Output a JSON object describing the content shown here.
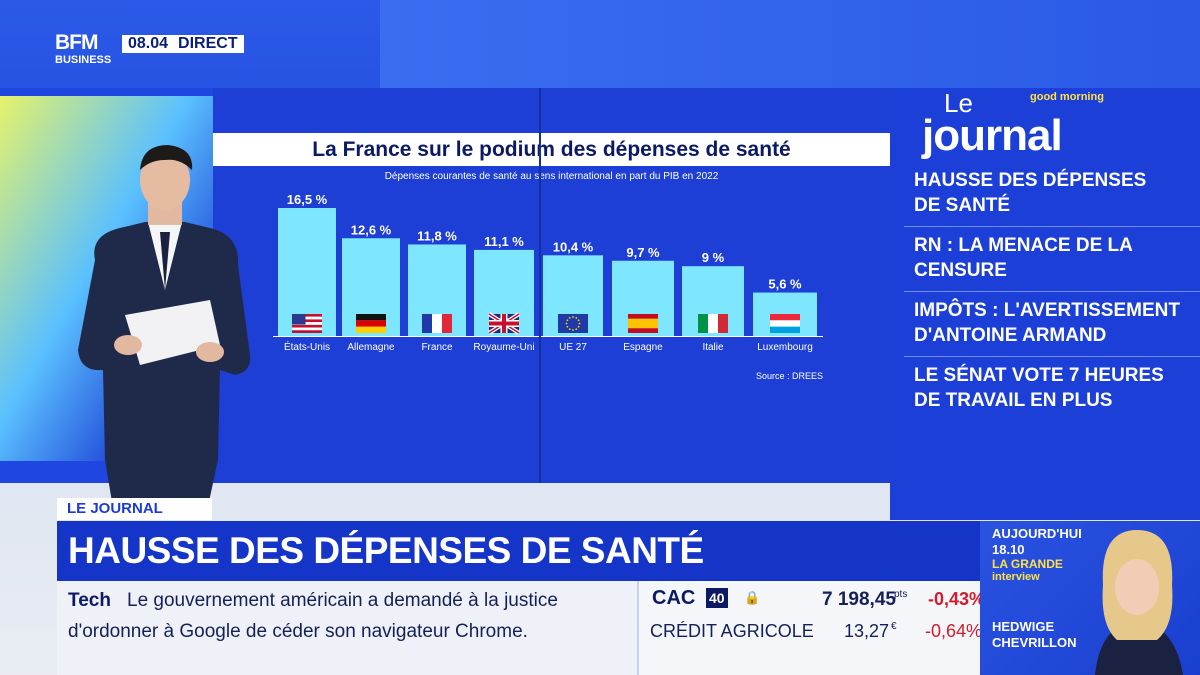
{
  "channel": {
    "logo_top": "BFM",
    "logo_bottom": "BUSINESS",
    "time": "08.04",
    "live": "DIRECT"
  },
  "chart_data": {
    "type": "bar",
    "title": "La France sur le podium des dépenses de santé",
    "subtitle": "Dépenses courantes de santé au sens international en part du PIB en 2022",
    "categories": [
      "États-Unis",
      "Allemagne",
      "France",
      "Royaume-Uni",
      "UE 27",
      "Espagne",
      "Italie",
      "Luxembourg"
    ],
    "values": [
      16.5,
      12.6,
      11.8,
      11.1,
      10.4,
      9.7,
      9,
      5.6
    ],
    "data_labels": [
      "16,5 %",
      "12,6 %",
      "11,8 %",
      "11,1 %",
      "10,4 %",
      "9,7 %",
      "9 %",
      "5,6 %"
    ],
    "flags": [
      "us-flag-icon",
      "germany-flag-icon",
      "france-flag-icon",
      "uk-flag-icon",
      "eu-flag-icon",
      "spain-flag-icon",
      "italy-flag-icon",
      "luxembourg-flag-icon"
    ],
    "source": "Source : DREES",
    "ylim": [
      0,
      17
    ],
    "bar_color": "#7fe6ff",
    "grid": false
  },
  "rail": {
    "logo_small": "Le",
    "logo_big": "journal",
    "tagline": "good morning",
    "headlines": [
      {
        "line1": "HAUSSE DES DÉPENSES",
        "line2": "DE SANTÉ"
      },
      {
        "line1": "RN : LA MENACE DE LA",
        "line2": "CENSURE"
      },
      {
        "line1": "IMPÔTS : L'AVERTISSEMENT",
        "line2": "D'ANTOINE ARMAND"
      },
      {
        "line1": "LE SÉNAT VOTE 7 HEURES",
        "line2": "DE TRAVAIL EN PLUS"
      }
    ]
  },
  "lower_third": {
    "tag": "LE JOURNAL",
    "headline": "HAUSSE DES DÉPENSES DE SANTÉ",
    "ticker_label": "Tech",
    "ticker_line1": "Le gouvernement américain a demandé à la justice",
    "ticker_line2": "d'ordonner à Google de céder son navigateur Chrome."
  },
  "market": {
    "index": "CAC",
    "index_badge": "40",
    "index_value": "7 198,45",
    "index_unit": "pts",
    "index_change": "-0,43%",
    "stock_name": "CRÉDIT AGRICOLE",
    "stock_value": "13,27",
    "stock_unit": "€",
    "stock_change": "-0,64%"
  },
  "promo": {
    "day": "AUJOURD'HUI",
    "time": "18.10",
    "show_line1": "LA GRANDE",
    "show_line2": "interview",
    "guest_first": "HEDWIGE",
    "guest_last": "CHEVRILLON"
  }
}
